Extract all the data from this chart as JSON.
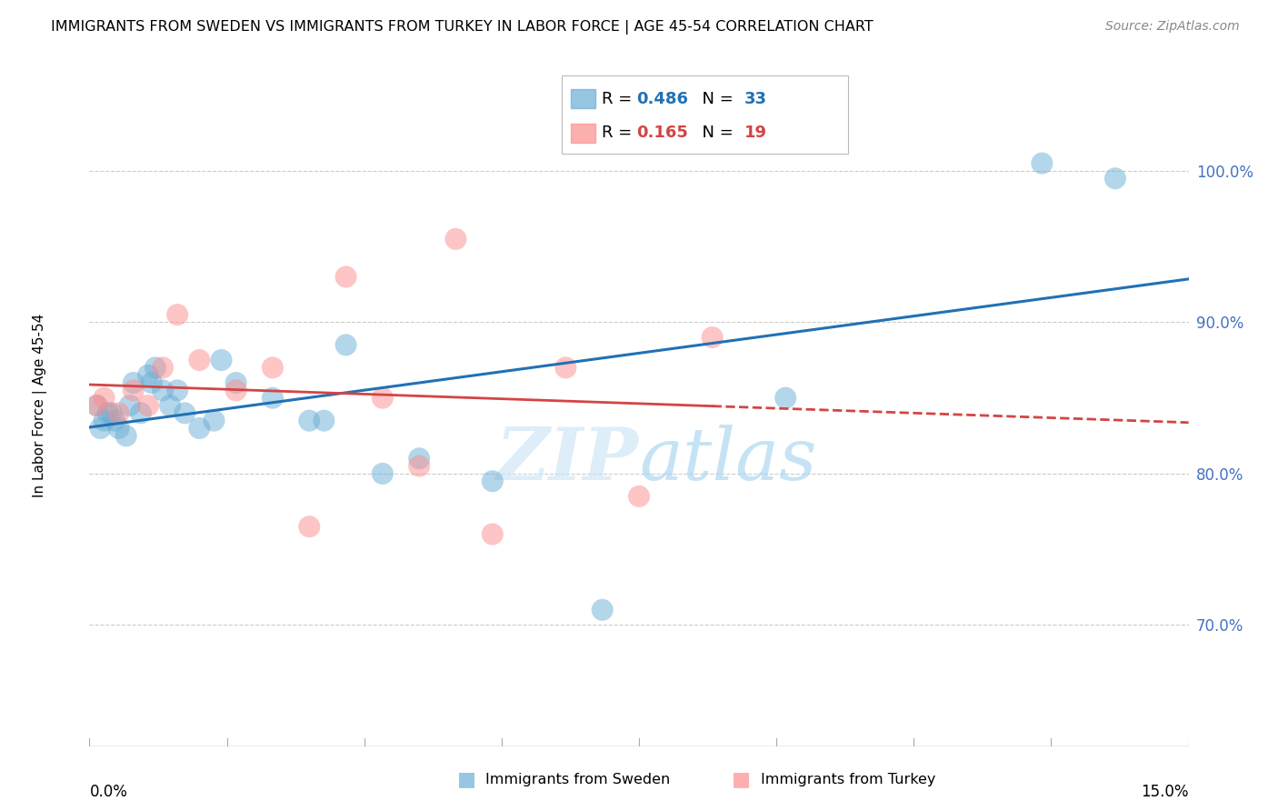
{
  "title": "IMMIGRANTS FROM SWEDEN VS IMMIGRANTS FROM TURKEY IN LABOR FORCE | AGE 45-54 CORRELATION CHART",
  "source": "Source: ZipAtlas.com",
  "ylabel": "In Labor Force | Age 45-54",
  "y_ticks": [
    70.0,
    80.0,
    90.0,
    100.0
  ],
  "x_min": 0.0,
  "x_max": 15.0,
  "y_min": 62.0,
  "y_max": 107.0,
  "sweden_R": 0.486,
  "sweden_N": 33,
  "turkey_R": 0.165,
  "turkey_N": 19,
  "sweden_color": "#6baed6",
  "turkey_color": "#fc8d8d",
  "sweden_line_color": "#2171b5",
  "turkey_line_color": "#d44444",
  "watermark_text": "ZIPatlas",
  "sweden_x": [
    0.1,
    0.15,
    0.2,
    0.25,
    0.3,
    0.35,
    0.4,
    0.5,
    0.55,
    0.6,
    0.7,
    0.8,
    0.85,
    0.9,
    1.0,
    1.1,
    1.2,
    1.3,
    1.5,
    1.7,
    1.8,
    2.0,
    2.5,
    3.0,
    3.2,
    3.5,
    4.0,
    4.5,
    5.5,
    7.0,
    9.5,
    13.0,
    14.0
  ],
  "sweden_y": [
    84.5,
    83.0,
    83.5,
    84.0,
    84.0,
    83.5,
    83.0,
    82.5,
    84.5,
    86.0,
    84.0,
    86.5,
    86.0,
    87.0,
    85.5,
    84.5,
    85.5,
    84.0,
    83.0,
    83.5,
    87.5,
    86.0,
    85.0,
    83.5,
    83.5,
    88.5,
    80.0,
    81.0,
    79.5,
    71.0,
    85.0,
    100.5,
    99.5
  ],
  "turkey_x": [
    0.1,
    0.2,
    0.4,
    0.6,
    0.8,
    1.0,
    1.2,
    1.5,
    2.0,
    2.5,
    3.0,
    3.5,
    4.0,
    4.5,
    5.0,
    5.5,
    6.5,
    7.5,
    8.5
  ],
  "turkey_y": [
    84.5,
    85.0,
    84.0,
    85.5,
    84.5,
    87.0,
    90.5,
    87.5,
    85.5,
    87.0,
    76.5,
    93.0,
    85.0,
    80.5,
    95.5,
    76.0,
    87.0,
    78.5,
    89.0
  ]
}
